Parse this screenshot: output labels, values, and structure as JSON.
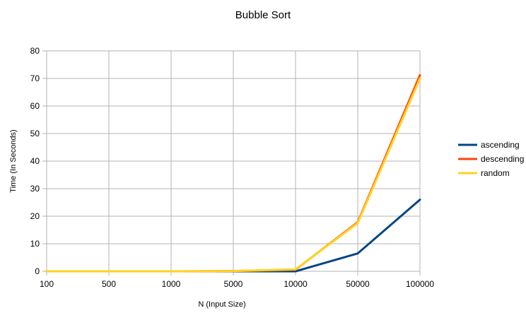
{
  "chart_data": {
    "type": "line",
    "title": "Bubble Sort",
    "xlabel": "N (Input Size)",
    "ylabel": "Time (In Seconds)",
    "categories": [
      "100",
      "500",
      "1000",
      "5000",
      "10000",
      "50000",
      "100000"
    ],
    "ylim": [
      0,
      80
    ],
    "yticks": [
      "0",
      "10",
      "20",
      "30",
      "40",
      "50",
      "60",
      "70",
      "80"
    ],
    "grid": true,
    "legend_position": "right",
    "series": [
      {
        "name": "ascending",
        "color": "#004586",
        "values": [
          0,
          0,
          0,
          0,
          0,
          6.5,
          26
        ]
      },
      {
        "name": "descending",
        "color": "#ff420e",
        "values": [
          0,
          0,
          0,
          0.1,
          0.6,
          17.8,
          71.2
        ]
      },
      {
        "name": "random",
        "color": "#ffd320",
        "values": [
          0,
          0,
          0,
          0.1,
          0.7,
          17.5,
          70
        ]
      }
    ]
  }
}
